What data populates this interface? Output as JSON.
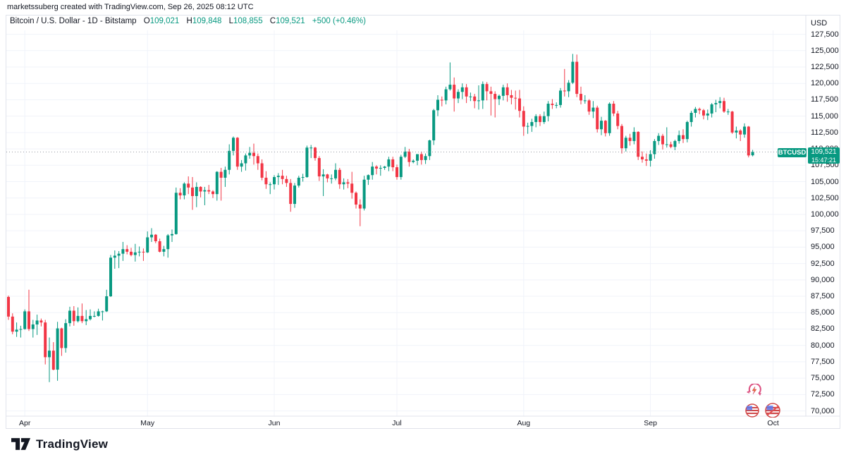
{
  "attribution": "marketssuberg created with TradingView.com, Sep 26, 2025 08:12 UTC",
  "header": {
    "symbol_title": "Bitcoin / U.S. Dollar - 1D - Bitstamp",
    "ohlc": {
      "o_label": "O",
      "o_value": "109,021",
      "h_label": "H",
      "h_value": "109,848",
      "l_label": "L",
      "l_value": "108,855",
      "c_label": "C",
      "c_value": "109,521",
      "change": "+500 (+0.46%)"
    }
  },
  "price_scale": {
    "unit": "USD",
    "ticks": [
      {
        "label": "127,500",
        "value": 127500
      },
      {
        "label": "125,000",
        "value": 125000
      },
      {
        "label": "122,500",
        "value": 122500
      },
      {
        "label": "120,000",
        "value": 120000
      },
      {
        "label": "117,500",
        "value": 117500
      },
      {
        "label": "115,000",
        "value": 115000
      },
      {
        "label": "112,500",
        "value": 112500
      },
      {
        "label": "110,000",
        "value": 110000
      },
      {
        "label": "107,500",
        "value": 107500
      },
      {
        "label": "105,000",
        "value": 105000
      },
      {
        "label": "102,500",
        "value": 102500
      },
      {
        "label": "100,000",
        "value": 100000
      },
      {
        "label": "97,500",
        "value": 97500
      },
      {
        "label": "95,000",
        "value": 95000
      },
      {
        "label": "92,500",
        "value": 92500
      },
      {
        "label": "90,000",
        "value": 90000
      },
      {
        "label": "87,500",
        "value": 87500
      },
      {
        "label": "85,000",
        "value": 85000
      },
      {
        "label": "82,500",
        "value": 82500
      },
      {
        "label": "80,000",
        "value": 80000
      },
      {
        "label": "77,500",
        "value": 77500
      },
      {
        "label": "75,000",
        "value": 75000
      },
      {
        "label": "72,500",
        "value": 72500
      },
      {
        "label": "70,000",
        "value": 70000
      }
    ]
  },
  "price_label": {
    "symbol": "BTCUSD",
    "price": "109,521",
    "countdown": "15:47:21",
    "value": 109521
  },
  "time_axis": {
    "months": [
      {
        "label": "Apr",
        "index": 4
      },
      {
        "label": "May",
        "index": 34
      },
      {
        "label": "Jun",
        "index": 65
      },
      {
        "label": "Jul",
        "index": 95
      },
      {
        "label": "Aug",
        "index": 126
      },
      {
        "label": "Sep",
        "index": 157
      },
      {
        "label": "Oct",
        "index": 187
      }
    ]
  },
  "footer": {
    "logo_text": "TradingView"
  },
  "watermark_icons": [
    "currency-sync-icon",
    "us-flag-icon",
    "us-flag-icon"
  ],
  "chart_data": {
    "type": "candlestick",
    "symbol": "BTCUSD",
    "exchange": "Bitstamp",
    "interval": "1D",
    "start_date": "2025-03-28",
    "end_date": "2025-09-26",
    "title": "Bitcoin / U.S. Dollar - 1D - Bitstamp",
    "ylabel": "USD",
    "grid": true,
    "axis": {
      "price_max": 128100,
      "price_min": 69200
    },
    "colors": {
      "up": "#089981",
      "down": "#F23645",
      "price_line": "#9598a1"
    },
    "last_candle_ohlc": {
      "open": 109021,
      "high": 109848,
      "low": 108855,
      "close": 109521
    },
    "candles": [
      [
        87400,
        87600,
        83900,
        84400
      ],
      [
        84400,
        84900,
        81700,
        82100
      ],
      [
        82100,
        83500,
        81300,
        82400
      ],
      [
        82400,
        83000,
        81200,
        82500
      ],
      [
        82500,
        85500,
        82400,
        85200
      ],
      [
        85200,
        88500,
        82200,
        82500
      ],
      [
        82500,
        83900,
        81200,
        83200
      ],
      [
        83200,
        84700,
        81600,
        83800
      ],
      [
        83800,
        84100,
        82900,
        83500
      ],
      [
        83500,
        83900,
        77100,
        78200
      ],
      [
        78200,
        81200,
        74400,
        79200
      ],
      [
        79200,
        80500,
        76200,
        76300
      ],
      [
        76300,
        83600,
        74600,
        82600
      ],
      [
        82600,
        82700,
        78400,
        79600
      ],
      [
        79600,
        84000,
        78900,
        83400
      ],
      [
        83400,
        85900,
        82900,
        85300
      ],
      [
        85300,
        86000,
        83000,
        83700
      ],
      [
        83700,
        85800,
        83500,
        84500
      ],
      [
        84500,
        86400,
        83400,
        83700
      ],
      [
        83700,
        85400,
        83100,
        84000
      ],
      [
        84000,
        85500,
        83800,
        84500
      ],
      [
        84500,
        85200,
        84300,
        84500
      ],
      [
        84500,
        85600,
        84400,
        85200
      ],
      [
        85200,
        85300,
        83800,
        85200
      ],
      [
        85200,
        88500,
        85100,
        87500
      ],
      [
        87500,
        93800,
        87400,
        93400
      ],
      [
        93400,
        94500,
        91700,
        93700
      ],
      [
        93700,
        94400,
        91800,
        94000
      ],
      [
        94000,
        95800,
        92900,
        94700
      ],
      [
        94700,
        95300,
        93900,
        94300
      ],
      [
        94300,
        94900,
        93600,
        93800
      ],
      [
        93800,
        95500,
        92800,
        94200
      ],
      [
        94200,
        95100,
        93600,
        94300
      ],
      [
        94300,
        94800,
        92900,
        94200
      ],
      [
        94200,
        97400,
        94100,
        96500
      ],
      [
        96500,
        97900,
        95800,
        96900
      ],
      [
        96900,
        97000,
        95600,
        95900
      ],
      [
        95900,
        96300,
        94200,
        94300
      ],
      [
        94300,
        95200,
        93600,
        94700
      ],
      [
        94700,
        97000,
        93400,
        96800
      ],
      [
        96800,
        97700,
        95800,
        97000
      ],
      [
        97000,
        104100,
        96900,
        103300
      ],
      [
        103300,
        104000,
        102300,
        102900
      ],
      [
        102900,
        104900,
        102300,
        104700
      ],
      [
        104700,
        105800,
        103100,
        104100
      ],
      [
        104100,
        105700,
        100700,
        102800
      ],
      [
        102800,
        104900,
        101100,
        104200
      ],
      [
        104200,
        104300,
        102600,
        103500
      ],
      [
        103500,
        104200,
        101400,
        103700
      ],
      [
        103700,
        104500,
        103100,
        103500
      ],
      [
        103500,
        103700,
        102500,
        103100
      ],
      [
        103100,
        106600,
        102100,
        106500
      ],
      [
        106500,
        107100,
        102100,
        105600
      ],
      [
        105600,
        107300,
        104200,
        106800
      ],
      [
        106800,
        110700,
        106100,
        109700
      ],
      [
        109700,
        111900,
        109000,
        111700
      ],
      [
        111700,
        111800,
        106800,
        107300
      ],
      [
        107300,
        108300,
        106500,
        107800
      ],
      [
        107800,
        109300,
        106700,
        109000
      ],
      [
        109000,
        110300,
        108500,
        109400
      ],
      [
        109400,
        110800,
        107600,
        108900
      ],
      [
        108900,
        109300,
        106800,
        107800
      ],
      [
        107800,
        108400,
        105200,
        105600
      ],
      [
        105600,
        106600,
        103900,
        104600
      ],
      [
        104600,
        104900,
        103100,
        104600
      ],
      [
        104600,
        106000,
        103800,
        105700
      ],
      [
        105700,
        106300,
        104500,
        105900
      ],
      [
        105900,
        106800,
        104600,
        105400
      ],
      [
        105400,
        105900,
        104200,
        104800
      ],
      [
        104800,
        105400,
        100400,
        101600
      ],
      [
        101600,
        104800,
        101000,
        104400
      ],
      [
        104400,
        105900,
        104100,
        105600
      ],
      [
        105600,
        106200,
        105000,
        105700
      ],
      [
        105700,
        110500,
        105600,
        110200
      ],
      [
        110200,
        110600,
        108600,
        110200
      ],
      [
        110200,
        110300,
        108200,
        108600
      ],
      [
        108600,
        108900,
        105100,
        105800
      ],
      [
        105800,
        106900,
        102800,
        106100
      ],
      [
        106100,
        106200,
        104900,
        105500
      ],
      [
        105500,
        106100,
        104700,
        105500
      ],
      [
        105500,
        107800,
        105200,
        106800
      ],
      [
        106800,
        107100,
        103900,
        104600
      ],
      [
        104600,
        105500,
        103800,
        104900
      ],
      [
        104900,
        105400,
        104000,
        104700
      ],
      [
        104700,
        106500,
        102400,
        103300
      ],
      [
        103300,
        103500,
        100900,
        101500
      ],
      [
        101500,
        102300,
        98200,
        100900
      ],
      [
        100900,
        105900,
        100600,
        105300
      ],
      [
        105300,
        106100,
        104500,
        106000
      ],
      [
        106000,
        108000,
        105300,
        107300
      ],
      [
        107300,
        107500,
        106100,
        107000
      ],
      [
        107000,
        107500,
        105900,
        107100
      ],
      [
        107100,
        107400,
        106800,
        107300
      ],
      [
        107300,
        108800,
        106600,
        108400
      ],
      [
        108400,
        108800,
        106600,
        107200
      ],
      [
        107200,
        107600,
        105300,
        105700
      ],
      [
        105700,
        109100,
        105300,
        108800
      ],
      [
        108800,
        110300,
        108600,
        109600
      ],
      [
        109600,
        110000,
        107300,
        108000
      ],
      [
        108000,
        108400,
        107800,
        108200
      ],
      [
        108200,
        109200,
        107500,
        109200
      ],
      [
        109200,
        109600,
        107600,
        108300
      ],
      [
        108300,
        109300,
        107700,
        108900
      ],
      [
        108900,
        111400,
        108300,
        111300
      ],
      [
        111300,
        116100,
        110600,
        115900
      ],
      [
        115900,
        118200,
        115000,
        117500
      ],
      [
        117500,
        118000,
        116500,
        117400
      ],
      [
        117400,
        119500,
        116800,
        119100
      ],
      [
        119100,
        123200,
        118900,
        119800
      ],
      [
        119800,
        120900,
        115700,
        117700
      ],
      [
        117700,
        119100,
        117000,
        118700
      ],
      [
        118700,
        120000,
        117600,
        119400
      ],
      [
        119400,
        119900,
        117000,
        118000
      ],
      [
        118000,
        118600,
        117300,
        118000
      ],
      [
        118000,
        118400,
        116200,
        117300
      ],
      [
        117300,
        119700,
        116000,
        117400
      ],
      [
        117400,
        120300,
        116100,
        119900
      ],
      [
        119900,
        120200,
        117400,
        118800
      ],
      [
        118800,
        119500,
        115100,
        118400
      ],
      [
        118400,
        118800,
        114800,
        117600
      ],
      [
        117600,
        118300,
        116700,
        118100
      ],
      [
        118100,
        119800,
        117400,
        119400
      ],
      [
        119400,
        120000,
        117200,
        118200
      ],
      [
        118200,
        119000,
        116800,
        117800
      ],
      [
        117800,
        118900,
        116000,
        117700
      ],
      [
        117700,
        119000,
        114800,
        115800
      ],
      [
        115800,
        116500,
        112000,
        113400
      ],
      [
        113400,
        114000,
        112300,
        113500
      ],
      [
        113500,
        114600,
        112600,
        114100
      ],
      [
        114100,
        115300,
        113300,
        115000
      ],
      [
        115000,
        115300,
        113500,
        114100
      ],
      [
        114100,
        115700,
        113800,
        115000
      ],
      [
        115000,
        117300,
        114200,
        116900
      ],
      [
        116900,
        117600,
        116100,
        116700
      ],
      [
        116700,
        117100,
        116200,
        116700
      ],
      [
        116700,
        119300,
        116300,
        118900
      ],
      [
        118900,
        122200,
        118000,
        118800
      ],
      [
        118800,
        120500,
        117900,
        120100
      ],
      [
        120100,
        124500,
        119900,
        123300
      ],
      [
        123300,
        124400,
        117900,
        118400
      ],
      [
        118400,
        119500,
        116800,
        117400
      ],
      [
        117400,
        118200,
        116900,
        117400
      ],
      [
        117400,
        117600,
        115200,
        115700
      ],
      [
        115700,
        117300,
        114700,
        116300
      ],
      [
        116300,
        116600,
        112500,
        113000
      ],
      [
        113000,
        114900,
        112100,
        114300
      ],
      [
        114300,
        114400,
        111900,
        112400
      ],
      [
        112400,
        117100,
        112000,
        116900
      ],
      [
        116900,
        117300,
        115000,
        115400
      ],
      [
        115400,
        115800,
        113000,
        113500
      ],
      [
        113500,
        113800,
        109300,
        110100
      ],
      [
        110100,
        112000,
        109600,
        111700
      ],
      [
        111700,
        112300,
        110500,
        111200
      ],
      [
        111200,
        113300,
        110700,
        112600
      ],
      [
        112600,
        112700,
        108300,
        108800
      ],
      [
        108800,
        109600,
        107900,
        108400
      ],
      [
        108400,
        109300,
        107400,
        108200
      ],
      [
        108200,
        109800,
        107300,
        109200
      ],
      [
        109200,
        111500,
        108500,
        111200
      ],
      [
        111200,
        112400,
        110600,
        112000
      ],
      [
        112000,
        112300,
        109900,
        110700
      ],
      [
        110700,
        113300,
        110200,
        110700
      ],
      [
        110700,
        111100,
        110100,
        110300
      ],
      [
        110300,
        111400,
        109800,
        111200
      ],
      [
        111200,
        112800,
        110800,
        112100
      ],
      [
        112100,
        113000,
        110900,
        111500
      ],
      [
        111500,
        114300,
        111000,
        114100
      ],
      [
        114100,
        115800,
        113400,
        115500
      ],
      [
        115500,
        116400,
        114800,
        116100
      ],
      [
        116100,
        116300,
        115300,
        115900
      ],
      [
        115900,
        116100,
        114500,
        115100
      ],
      [
        115100,
        116000,
        114400,
        115400
      ],
      [
        115400,
        117000,
        114800,
        116800
      ],
      [
        116800,
        117500,
        115600,
        117000
      ],
      [
        117000,
        117900,
        116200,
        117300
      ],
      [
        117300,
        117800,
        115500,
        115700
      ],
      [
        115700,
        116100,
        115200,
        115700
      ],
      [
        115700,
        115800,
        112300,
        112500
      ],
      [
        112500,
        113400,
        111600,
        112800
      ],
      [
        112800,
        113000,
        111200,
        112200
      ],
      [
        112200,
        113900,
        111700,
        113400
      ],
      [
        113400,
        113500,
        108700,
        109000
      ],
      [
        109021,
        109848,
        108855,
        109521
      ]
    ]
  }
}
